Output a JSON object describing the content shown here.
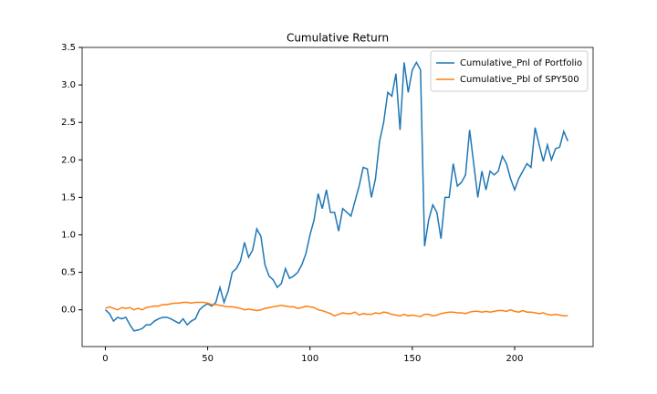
{
  "chart_data": {
    "type": "line",
    "title": "Cumulative Return",
    "x": [
      0,
      2,
      4,
      6,
      8,
      10,
      12,
      14,
      16,
      18,
      20,
      22,
      24,
      26,
      28,
      30,
      32,
      34,
      36,
      38,
      40,
      42,
      44,
      46,
      48,
      50,
      52,
      54,
      56,
      58,
      60,
      62,
      64,
      66,
      68,
      70,
      72,
      74,
      76,
      78,
      80,
      82,
      84,
      86,
      88,
      90,
      92,
      94,
      96,
      98,
      100,
      102,
      104,
      106,
      108,
      110,
      112,
      114,
      116,
      118,
      120,
      122,
      124,
      126,
      128,
      130,
      132,
      134,
      136,
      138,
      140,
      142,
      144,
      146,
      148,
      150,
      152,
      154,
      156,
      158,
      160,
      162,
      164,
      166,
      168,
      170,
      172,
      174,
      176,
      178,
      180,
      182,
      184,
      186,
      188,
      190,
      192,
      194,
      196,
      198,
      200,
      202,
      204,
      206,
      208,
      210,
      212,
      214,
      216,
      218,
      220,
      222,
      224,
      226
    ],
    "series": [
      {
        "name": "Cumulative_Pnl of Portfolio",
        "color": "#1f77b4",
        "values": [
          0.0,
          -0.05,
          -0.15,
          -0.1,
          -0.12,
          -0.1,
          -0.2,
          -0.28,
          -0.27,
          -0.25,
          -0.2,
          -0.2,
          -0.15,
          -0.12,
          -0.1,
          -0.1,
          -0.12,
          -0.15,
          -0.18,
          -0.12,
          -0.2,
          -0.15,
          -0.12,
          0.0,
          0.05,
          0.08,
          0.05,
          0.1,
          0.3,
          0.1,
          0.25,
          0.5,
          0.55,
          0.65,
          0.9,
          0.7,
          0.8,
          1.08,
          0.98,
          0.6,
          0.45,
          0.4,
          0.3,
          0.35,
          0.55,
          0.42,
          0.45,
          0.5,
          0.6,
          0.75,
          1.0,
          1.2,
          1.55,
          1.35,
          1.6,
          1.3,
          1.3,
          1.05,
          1.35,
          1.3,
          1.25,
          1.45,
          1.65,
          1.9,
          1.88,
          1.5,
          1.75,
          2.25,
          2.5,
          2.9,
          2.85,
          3.15,
          2.4,
          3.3,
          2.9,
          3.2,
          3.3,
          3.2,
          0.85,
          1.2,
          1.4,
          1.3,
          0.95,
          1.5,
          1.5,
          1.95,
          1.65,
          1.7,
          1.8,
          2.4,
          1.95,
          1.5,
          1.85,
          1.6,
          1.85,
          1.8,
          1.85,
          2.05,
          1.95,
          1.75,
          1.6,
          1.75,
          1.85,
          1.95,
          1.9,
          2.43,
          2.2,
          1.98,
          2.2,
          2.0,
          2.15,
          2.17,
          2.38,
          2.25
        ]
      },
      {
        "name": "Cumulative_Pbl of SPY500",
        "color": "#ff7f0e",
        "values": [
          0.02,
          0.04,
          0.02,
          0.0,
          0.03,
          0.02,
          0.03,
          0.0,
          0.02,
          0.0,
          0.03,
          0.04,
          0.05,
          0.05,
          0.07,
          0.07,
          0.08,
          0.09,
          0.09,
          0.1,
          0.1,
          0.09,
          0.1,
          0.1,
          0.1,
          0.09,
          0.07,
          0.07,
          0.06,
          0.05,
          0.04,
          0.04,
          0.03,
          0.02,
          0.0,
          0.01,
          0.0,
          -0.01,
          0.0,
          0.02,
          0.03,
          0.04,
          0.05,
          0.06,
          0.05,
          0.04,
          0.04,
          0.02,
          0.03,
          0.05,
          0.04,
          0.03,
          0.0,
          -0.01,
          -0.03,
          -0.05,
          -0.08,
          -0.06,
          -0.04,
          -0.05,
          -0.05,
          -0.03,
          -0.07,
          -0.05,
          -0.06,
          -0.06,
          -0.04,
          -0.05,
          -0.03,
          -0.04,
          -0.06,
          -0.07,
          -0.08,
          -0.06,
          -0.08,
          -0.07,
          -0.08,
          -0.09,
          -0.06,
          -0.06,
          -0.08,
          -0.07,
          -0.05,
          -0.04,
          -0.03,
          -0.03,
          -0.04,
          -0.04,
          -0.05,
          -0.03,
          -0.02,
          -0.02,
          -0.03,
          -0.02,
          -0.03,
          -0.02,
          -0.01,
          -0.01,
          -0.02,
          0.0,
          -0.02,
          -0.03,
          -0.01,
          -0.03,
          -0.03,
          -0.04,
          -0.05,
          -0.04,
          -0.06,
          -0.07,
          -0.06,
          -0.07,
          -0.08,
          -0.08
        ]
      }
    ],
    "xlim": [
      -11.35,
      238.35
    ],
    "xticks": [
      0,
      50,
      100,
      150,
      200
    ],
    "ylim": [
      -0.49,
      3.5
    ],
    "yticks": [
      {
        "value": 0,
        "label": "0.0"
      },
      0.5,
      {
        "value": 1,
        "label": "1.0"
      },
      1.5,
      {
        "value": 2,
        "label": "2.0"
      },
      2.5,
      {
        "value": 3,
        "label": "3.0"
      },
      3.5
    ],
    "legend": "upper right"
  }
}
